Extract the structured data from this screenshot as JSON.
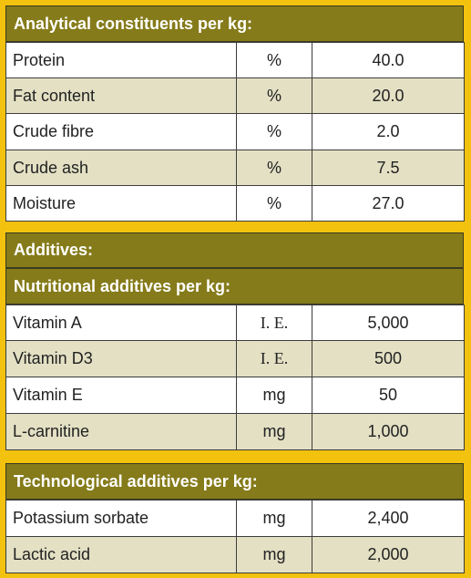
{
  "analytical": {
    "title": "Analytical constituents per kg:",
    "rows": [
      {
        "name": "Protein",
        "unit": "%",
        "value": "40.0"
      },
      {
        "name": "Fat content",
        "unit": "%",
        "value": "20.0"
      },
      {
        "name": "Crude fibre",
        "unit": "%",
        "value": "2.0"
      },
      {
        "name": "Crude ash",
        "unit": "%",
        "value": "7.5"
      },
      {
        "name": "Moisture",
        "unit": "%",
        "value": "27.0"
      }
    ]
  },
  "additives": {
    "title": "Additives:",
    "nutritional_title": "Nutritional additives per kg:",
    "rows": [
      {
        "name": "Vitamin A",
        "unit": "I. E.",
        "value": "5,000"
      },
      {
        "name": "Vitamin D3",
        "unit": "I. E.",
        "value": "500"
      },
      {
        "name": "Vitamin E",
        "unit": "mg",
        "value": "50"
      },
      {
        "name": "L-carnitine",
        "unit": "mg",
        "value": "1,000"
      }
    ]
  },
  "technological": {
    "title": "Technological additives per kg:",
    "rows": [
      {
        "name": "Potassium sorbate",
        "unit": "mg",
        "value": "2,400"
      },
      {
        "name": "Lactic acid",
        "unit": "mg",
        "value": "2,000"
      }
    ]
  }
}
